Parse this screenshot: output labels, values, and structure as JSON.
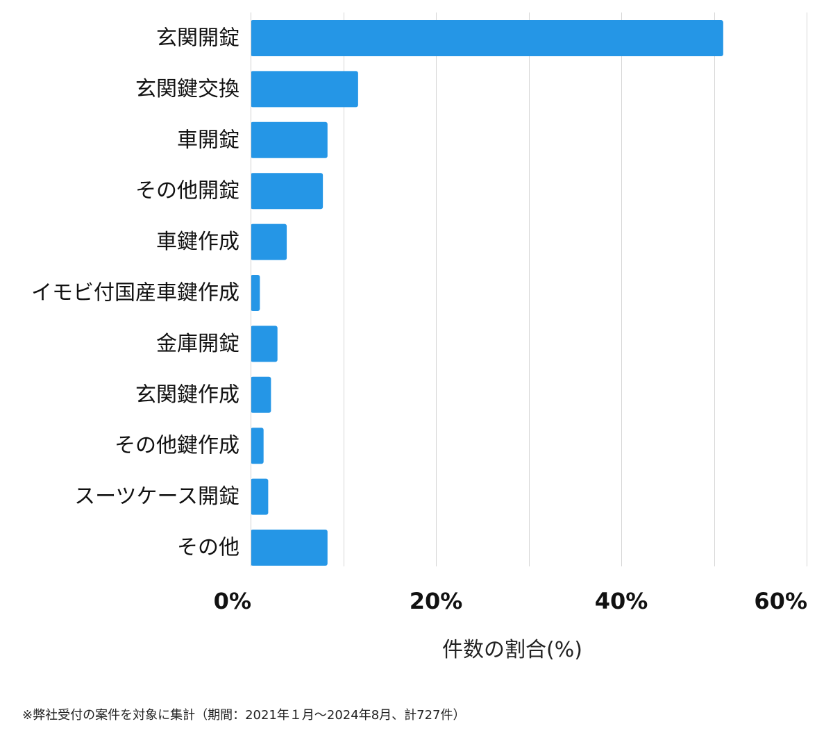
{
  "chart_data": {
    "type": "bar",
    "orientation": "horizontal",
    "categories": [
      "玄関開錠",
      "玄関鍵交換",
      "車開錠",
      "その他開錠",
      "車鍵作成",
      "イモビ付国産車鍵作成",
      "金庫開錠",
      "玄関鍵作成",
      "その他鍵作成",
      "スーツケース開錠",
      "その他"
    ],
    "values": [
      51.0,
      11.6,
      8.3,
      7.8,
      3.9,
      1.0,
      2.9,
      2.2,
      1.4,
      1.9,
      8.3
    ],
    "xlabel": "件数の割合(%)",
    "xlim": [
      0,
      60
    ],
    "xticks": [
      0,
      20,
      40,
      60
    ],
    "tick_labels": [
      "0%",
      "20%",
      "40%",
      "60%"
    ],
    "grid": true,
    "bar_color": "#2596e6"
  },
  "footnote": "※弊社受付の案件を対象に集計（期間：2021年１月〜2024年8月、計727件）"
}
